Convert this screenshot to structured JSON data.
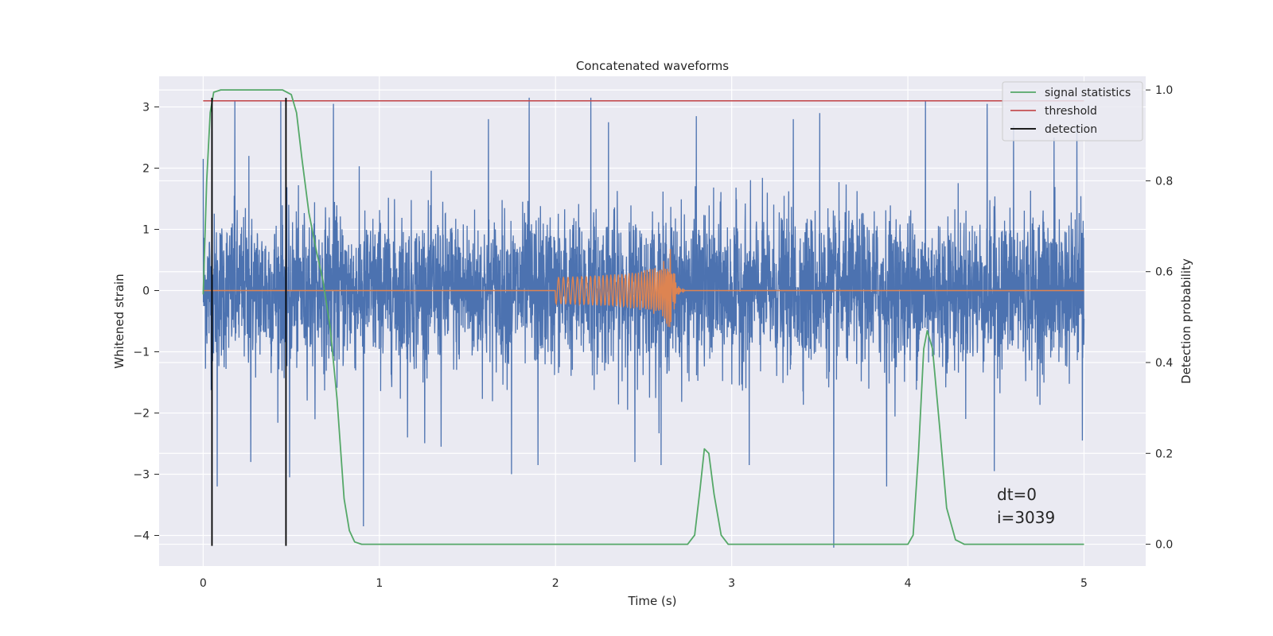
{
  "chart_data": {
    "type": "line",
    "title": "Concatenated waveforms",
    "xlabel": "Time (s)",
    "ylabel_left": "Whitened strain",
    "ylabel_right": "Detection probability",
    "xlim": [
      -0.25,
      5.35
    ],
    "ylim_left": [
      -4.5,
      3.5
    ],
    "ylim_right": [
      -0.048,
      1.03
    ],
    "xticks": [
      0,
      1,
      2,
      3,
      4,
      5
    ],
    "yticks_left": [
      -4,
      -3,
      -2,
      -1,
      0,
      1,
      2,
      3
    ],
    "yticks_right": [
      0.0,
      0.2,
      0.4,
      0.6,
      0.8,
      1.0
    ],
    "grid": true,
    "legend_position": "top-right",
    "colors": {
      "background": "#EAEAF2",
      "noise": "#4C72B0",
      "waveform": "#DD8452",
      "signal_statistics": "#55A868",
      "threshold": "#C44E52",
      "detection": "#000000"
    },
    "series": [
      {
        "name": "",
        "role": "whitened_strain_noise",
        "x_range": [
          0,
          5
        ],
        "envelope_typical": 1.3,
        "spikes": [
          {
            "x": 0.0,
            "y": 2.15
          },
          {
            "x": 0.05,
            "y": 2.6
          },
          {
            "x": 0.08,
            "y": -3.2
          },
          {
            "x": 0.18,
            "y": 3.1
          },
          {
            "x": 0.26,
            "y": 2.2
          },
          {
            "x": 0.27,
            "y": -2.8
          },
          {
            "x": 0.44,
            "y": 3.1
          },
          {
            "x": 0.49,
            "y": -3.05
          },
          {
            "x": 0.74,
            "y": 3.05
          },
          {
            "x": 0.91,
            "y": -3.85
          },
          {
            "x": 1.16,
            "y": -2.4
          },
          {
            "x": 1.35,
            "y": -2.55
          },
          {
            "x": 1.62,
            "y": 2.8
          },
          {
            "x": 1.75,
            "y": -3.0
          },
          {
            "x": 1.85,
            "y": 3.15
          },
          {
            "x": 1.9,
            "y": -2.85
          },
          {
            "x": 2.2,
            "y": 3.15
          },
          {
            "x": 2.3,
            "y": 2.75
          },
          {
            "x": 2.45,
            "y": -2.8
          },
          {
            "x": 2.6,
            "y": -2.85
          },
          {
            "x": 2.8,
            "y": 2.85
          },
          {
            "x": 3.1,
            "y": -2.85
          },
          {
            "x": 3.35,
            "y": 2.8
          },
          {
            "x": 3.5,
            "y": 2.9
          },
          {
            "x": 3.58,
            "y": -4.2
          },
          {
            "x": 3.88,
            "y": -3.2
          },
          {
            "x": 4.1,
            "y": 3.1
          },
          {
            "x": 4.45,
            "y": 3.05
          },
          {
            "x": 4.49,
            "y": -2.95
          },
          {
            "x": 4.6,
            "y": 2.7
          },
          {
            "x": 4.83,
            "y": 2.5
          },
          {
            "x": 4.96,
            "y": 2.7
          },
          {
            "x": 4.99,
            "y": -2.45
          }
        ]
      },
      {
        "name": "",
        "role": "injected_waveform",
        "chirp_start": 2.0,
        "merger_time": 2.66,
        "peak_amplitude": 0.75,
        "start_amplitude": 0.12
      },
      {
        "name": "signal statistics",
        "axis": "right",
        "points": [
          [
            0.0,
            0.55
          ],
          [
            0.02,
            0.8
          ],
          [
            0.04,
            0.95
          ],
          [
            0.06,
            0.995
          ],
          [
            0.1,
            1.0
          ],
          [
            0.45,
            1.0
          ],
          [
            0.5,
            0.99
          ],
          [
            0.53,
            0.95
          ],
          [
            0.56,
            0.85
          ],
          [
            0.6,
            0.73
          ],
          [
            0.64,
            0.65
          ],
          [
            0.68,
            0.58
          ],
          [
            0.72,
            0.48
          ],
          [
            0.76,
            0.32
          ],
          [
            0.8,
            0.1
          ],
          [
            0.83,
            0.03
          ],
          [
            0.86,
            0.005
          ],
          [
            0.9,
            0.0
          ],
          [
            2.75,
            0.0
          ],
          [
            2.79,
            0.02
          ],
          [
            2.82,
            0.12
          ],
          [
            2.845,
            0.21
          ],
          [
            2.87,
            0.2
          ],
          [
            2.9,
            0.11
          ],
          [
            2.94,
            0.02
          ],
          [
            2.98,
            0.0
          ],
          [
            4.0,
            0.0
          ],
          [
            4.03,
            0.02
          ],
          [
            4.06,
            0.2
          ],
          [
            4.09,
            0.43
          ],
          [
            4.11,
            0.47
          ],
          [
            4.14,
            0.43
          ],
          [
            4.18,
            0.26
          ],
          [
            4.22,
            0.08
          ],
          [
            4.27,
            0.01
          ],
          [
            4.32,
            0.0
          ],
          [
            5.0,
            0.0
          ]
        ]
      },
      {
        "name": "threshold",
        "axis": "left",
        "x": [
          0,
          5
        ],
        "y": 3.1
      },
      {
        "name": "detection",
        "axis": "left",
        "x_positions": [
          0.05,
          0.47
        ],
        "y_range": [
          -4.17,
          3.15
        ]
      }
    ],
    "annotations": [
      "dt=0",
      "i=3039"
    ]
  }
}
